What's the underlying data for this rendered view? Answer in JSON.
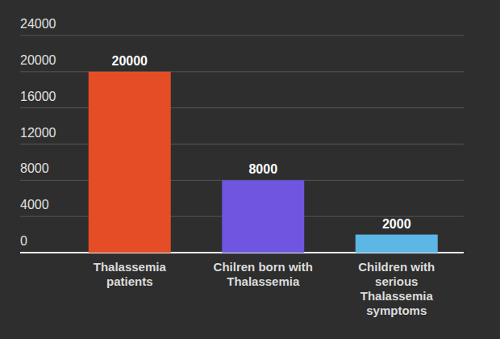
{
  "chart_data": {
    "type": "bar",
    "categories": [
      "Thalassemia patients",
      "Chilren born with Thalassemia",
      "Children with serious Thalassemia symptoms"
    ],
    "values": [
      20000,
      8000,
      2000
    ],
    "colors": [
      "#e54d26",
      "#6f55e0",
      "#5cb6e6"
    ],
    "ylim": [
      0,
      24000
    ],
    "yticks": [
      0,
      4000,
      8000,
      12000,
      16000,
      20000,
      24000
    ],
    "grid": true,
    "data_labels": true
  }
}
